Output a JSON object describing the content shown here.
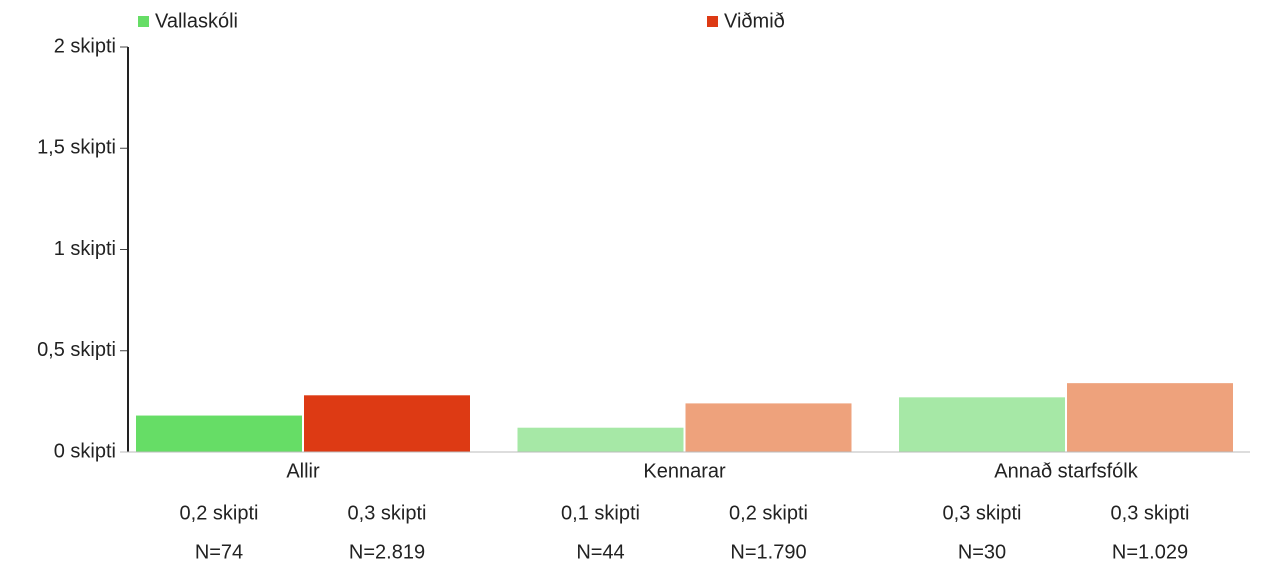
{
  "chart_data": {
    "type": "bar",
    "categories": [
      "Allir",
      "Kennarar",
      "Annað starfsfólk"
    ],
    "series": [
      {
        "name": "Vallaskóli",
        "color": "#66dd66",
        "colors": [
          "#66dd66",
          "#a6e8a6",
          "#a6e8a6"
        ],
        "values": [
          0.18,
          0.12,
          0.27
        ],
        "value_labels": [
          "0,2 skipti",
          "0,1 skipti",
          "0,3 skipti"
        ],
        "n_labels": [
          "N=74",
          "N=44",
          "N=30"
        ]
      },
      {
        "name": "Viðmið",
        "color": "#dd3a14",
        "colors": [
          "#dd3a14",
          "#eea27c",
          "#eea27c"
        ],
        "values": [
          0.28,
          0.24,
          0.34
        ],
        "value_labels": [
          "0,3 skipti",
          "0,2 skipti",
          "0,3 skipti"
        ],
        "n_labels": [
          "N=2.819",
          "N=1.790",
          "N=1.029"
        ]
      }
    ],
    "ylim": [
      0,
      2
    ],
    "yticks": [
      {
        "value": 0,
        "label": "0 skipti"
      },
      {
        "value": 0.5,
        "label": "0,5 skipti"
      },
      {
        "value": 1,
        "label": "1 skipti"
      },
      {
        "value": 1.5,
        "label": "1,5 skipti"
      },
      {
        "value": 2,
        "label": "2 skipti"
      }
    ],
    "legend": "top"
  }
}
